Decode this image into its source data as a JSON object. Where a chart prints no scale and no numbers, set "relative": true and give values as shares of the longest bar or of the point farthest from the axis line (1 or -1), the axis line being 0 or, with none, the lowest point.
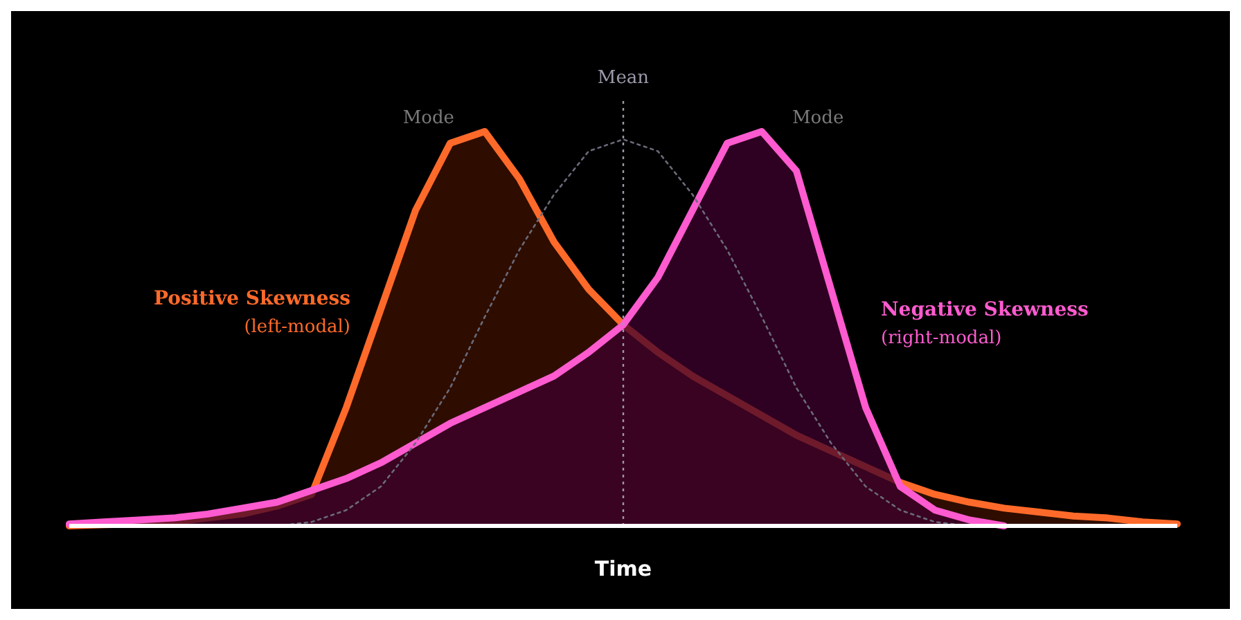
{
  "chart_data": {
    "type": "area",
    "relative": true,
    "xlabel": "Time",
    "categories": [
      null,
      null,
      null,
      null,
      null,
      null,
      null,
      null,
      null,
      null,
      null,
      null,
      null,
      null,
      null,
      null,
      null,
      null,
      null,
      null,
      null,
      null,
      null,
      null,
      null,
      null,
      null,
      null,
      null,
      null,
      null,
      null,
      null
    ],
    "series": [
      {
        "name": "Positive Skewness",
        "type": "area",
        "color": "#ff6a2a",
        "values": [
          0,
          0.003,
          0.005,
          0.01,
          0.02,
          0.03,
          0.05,
          0.08,
          0.3,
          0.55,
          0.8,
          0.97,
          1.0,
          0.88,
          0.72,
          0.6,
          0.51,
          0.44,
          0.38,
          0.33,
          0.28,
          0.23,
          0.19,
          0.15,
          0.11,
          0.08,
          0.06,
          0.045,
          0.035,
          0.025,
          0.02,
          0.01,
          0.005
        ]
      },
      {
        "name": "Negative Skewness",
        "type": "area",
        "color": "#ff5bd0",
        "values": [
          0.005,
          0.01,
          0.015,
          0.02,
          0.03,
          0.045,
          0.06,
          0.09,
          0.12,
          0.16,
          0.21,
          0.26,
          0.3,
          0.34,
          0.38,
          0.44,
          0.51,
          0.63,
          0.8,
          0.97,
          1.0,
          0.9,
          0.6,
          0.3,
          0.1,
          0.04,
          0.015,
          0,
          null,
          null,
          null,
          null,
          null
        ]
      },
      {
        "type": "line",
        "line_style": "dotted",
        "color": "#6a6a7a",
        "values": [
          null,
          null,
          null,
          null,
          null,
          null,
          0,
          0.01,
          0.04,
          0.1,
          0.21,
          0.35,
          0.53,
          0.7,
          0.84,
          0.95,
          0.98,
          0.95,
          0.84,
          0.7,
          0.53,
          0.35,
          0.21,
          0.1,
          0.04,
          0.01,
          0,
          null,
          null,
          null,
          null,
          null,
          null
        ]
      }
    ],
    "ref_lines": [
      {
        "axis": "x",
        "label": "Mean",
        "color": "#9a9aaa",
        "line_style": "dotted"
      }
    ],
    "annotations": [
      "(left-modal)",
      "(right-modal)",
      "Mode",
      "Mode"
    ]
  }
}
